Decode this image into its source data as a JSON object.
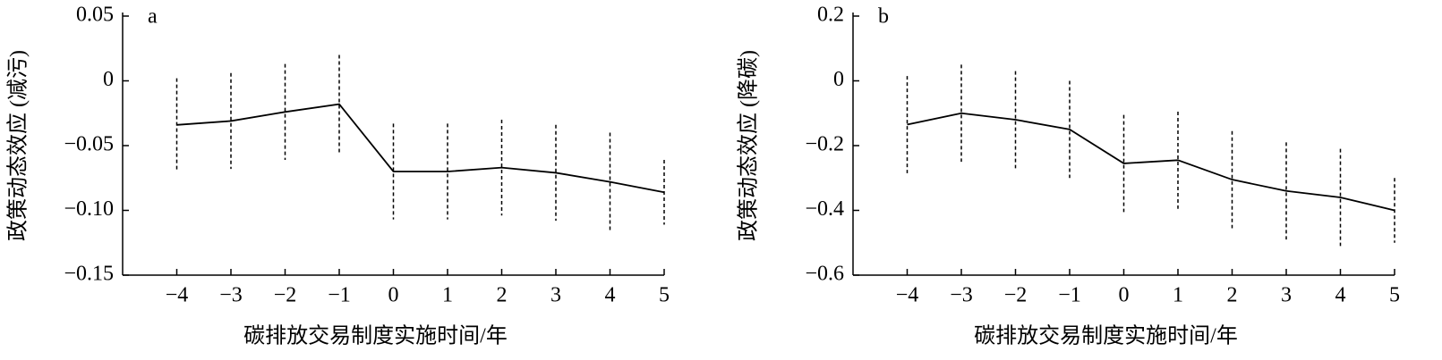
{
  "chart_data": [
    {
      "type": "line",
      "panel": "a",
      "y_label": "政策动态效应 (减污)",
      "x_label": "碳排放交易制度实施时间/年",
      "color": "#000000",
      "x": [
        -4,
        -3,
        -2,
        -1,
        0,
        1,
        2,
        3,
        4,
        5
      ],
      "values": [
        -0.034,
        -0.031,
        -0.024,
        -0.018,
        -0.07,
        -0.07,
        -0.067,
        -0.071,
        -0.078,
        -0.086
      ],
      "errors": [
        0.036,
        0.037,
        0.037,
        0.038,
        0.037,
        0.037,
        0.037,
        0.037,
        0.038,
        0.025
      ],
      "xlim": [
        -5,
        5
      ],
      "xticks": [
        {
          "value": -4,
          "label": "−4"
        },
        {
          "value": -3,
          "label": "−3"
        },
        {
          "value": -2,
          "label": "−2"
        },
        {
          "value": -1,
          "label": "−1"
        },
        0,
        1,
        2,
        3,
        4,
        5
      ],
      "ylim": [
        -0.15,
        0.05
      ],
      "yticks": [
        {
          "value": -0.15,
          "label": "−0.15"
        },
        {
          "value": -0.1,
          "label": "−0.10"
        },
        {
          "value": -0.05,
          "label": "−0.05"
        },
        0,
        0.05
      ]
    },
    {
      "type": "line",
      "panel": "b",
      "y_label": "政策动态效应 (降碳)",
      "x_label": "碳排放交易制度实施时间/年",
      "color": "#000000",
      "x": [
        -4,
        -3,
        -2,
        -1,
        0,
        1,
        2,
        3,
        4,
        5
      ],
      "values": [
        -0.135,
        -0.1,
        -0.12,
        -0.15,
        -0.255,
        -0.245,
        -0.305,
        -0.34,
        -0.36,
        -0.4
      ],
      "errors": [
        0.15,
        0.15,
        0.15,
        0.15,
        0.15,
        0.15,
        0.15,
        0.15,
        0.15,
        0.1
      ],
      "xlim": [
        -5,
        5
      ],
      "xticks": [
        {
          "value": -4,
          "label": "−4"
        },
        {
          "value": -3,
          "label": "−3"
        },
        {
          "value": -2,
          "label": "−2"
        },
        {
          "value": -1,
          "label": "−1"
        },
        0,
        1,
        2,
        3,
        4,
        5
      ],
      "ylim": [
        -0.6,
        0.2
      ],
      "yticks": [
        {
          "value": -0.6,
          "label": "−0.6"
        },
        {
          "value": -0.4,
          "label": "−0.4"
        },
        {
          "value": -0.2,
          "label": "−0.2"
        },
        0,
        0.2
      ]
    }
  ]
}
